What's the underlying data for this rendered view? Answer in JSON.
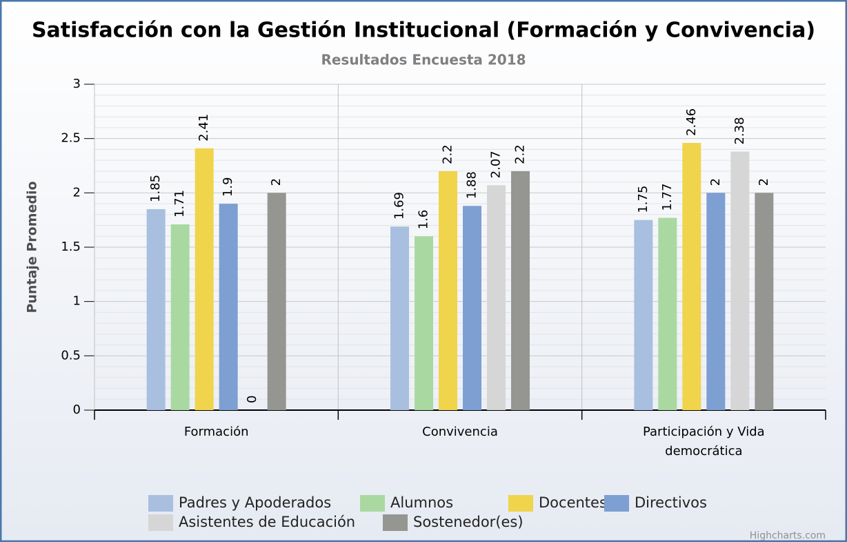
{
  "chart_data": {
    "type": "bar",
    "title": "Satisfacción con la Gestión Institucional (Formación y Convivencia)",
    "subtitle": "Resultados Encuesta 2018",
    "y_label": "Puntaje Promedio",
    "categories": [
      "Formación",
      "Convivencia",
      "Participación y Vida democrática"
    ],
    "series": [
      {
        "name": "Padres y Apoderados",
        "color": "#a9bfe0",
        "values": [
          1.85,
          1.69,
          1.75
        ]
      },
      {
        "name": "Alumnos",
        "color": "#a9d9a1",
        "values": [
          1.71,
          1.6,
          1.77
        ]
      },
      {
        "name": "Docentes",
        "color": "#f0d44c",
        "values": [
          2.41,
          2.2,
          2.46
        ]
      },
      {
        "name": "Directivos",
        "color": "#7d9fd1",
        "values": [
          1.9,
          1.88,
          2
        ]
      },
      {
        "name": "Asistentes de Educación",
        "color": "#d6d6d6",
        "values": [
          0,
          2.07,
          2.38
        ]
      },
      {
        "name": "Sostenedor(es)",
        "color": "#959591",
        "values": [
          2,
          2.2,
          2
        ]
      }
    ],
    "ylim": [
      0,
      3
    ],
    "yticks": [
      0,
      0.5,
      1,
      1.5,
      2,
      2.5,
      3
    ],
    "grid": true,
    "legend": "bottom",
    "credits": "Highcharts.com"
  }
}
